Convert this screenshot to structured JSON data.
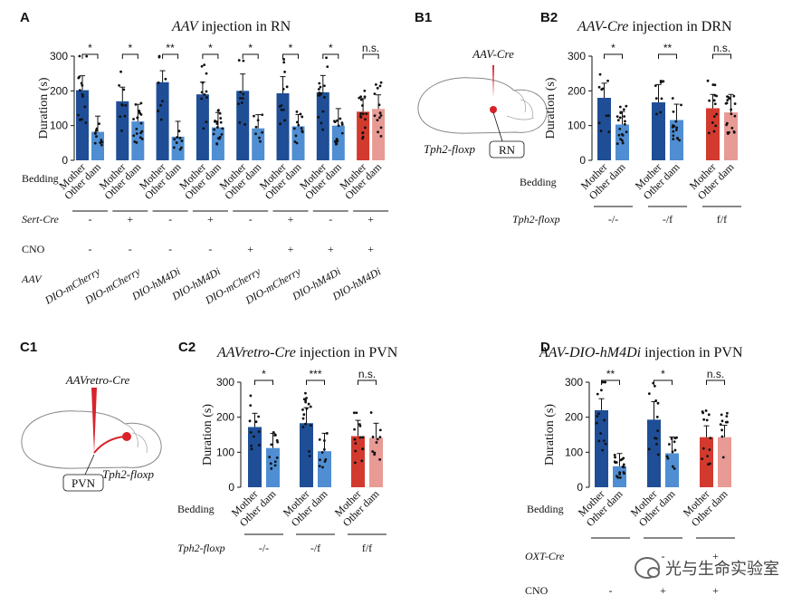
{
  "panel_labels": {
    "A": "A",
    "B1": "B1",
    "B2": "B2",
    "C1": "C1",
    "C2": "C2",
    "D": "D"
  },
  "colors": {
    "mother_blue": "#1f4e96",
    "other_blue": "#4f8ed2",
    "mother_red": "#d33a2e",
    "other_red": "#e89a95",
    "brain_red": "#d8232a"
  },
  "common": {
    "bedding_label": "Bedding",
    "mother": "Mother",
    "other_dam": "Other dam"
  },
  "schematics": {
    "b1": {
      "virus": "AAV-Cre",
      "target": "RN",
      "mouse": "Tph2-floxp"
    },
    "c1": {
      "virus": "AAVretro-Cre",
      "target": "PVN",
      "mouse": "Tph2-floxp"
    }
  },
  "watermark": "光与生命实验室",
  "chart_data": [
    {
      "id": "A",
      "type": "bar",
      "title_italic": "AAV",
      "title_rest": " injection in RN",
      "ylabel": "Duration (s)",
      "ylim": [
        0,
        300
      ],
      "yticks": [
        0,
        100,
        200,
        300
      ],
      "categories": [
        "Mother",
        "Other dam"
      ],
      "groups": [
        {
          "values": [
            202,
            82
          ],
          "significance": "*",
          "colors": [
            "blue"
          ]
        },
        {
          "values": [
            170,
            112
          ],
          "significance": "*",
          "colors": [
            "blue"
          ]
        },
        {
          "values": [
            225,
            68
          ],
          "significance": "**",
          "colors": [
            "blue"
          ]
        },
        {
          "values": [
            190,
            95
          ],
          "significance": "*",
          "colors": [
            "blue"
          ]
        },
        {
          "values": [
            200,
            92
          ],
          "significance": "*",
          "colors": [
            "blue"
          ]
        },
        {
          "values": [
            193,
            98
          ],
          "significance": "*",
          "colors": [
            "blue"
          ]
        },
        {
          "values": [
            196,
            100
          ],
          "significance": "*",
          "colors": [
            "blue"
          ]
        },
        {
          "values": [
            140,
            148
          ],
          "significance": "n.s.",
          "colors": [
            "red"
          ]
        }
      ],
      "conditions": [
        {
          "label": "Sert-Cre",
          "italic": true,
          "values": [
            "-",
            "+",
            "-",
            "+",
            "-",
            "+",
            "-",
            "+"
          ]
        },
        {
          "label": "CNO",
          "italic": false,
          "values": [
            "-",
            "-",
            "-",
            "-",
            "+",
            "+",
            "+",
            "+"
          ]
        },
        {
          "label": "AAV",
          "italic": true,
          "values": [
            "DIO-mCherry",
            "DIO-mCherry",
            "DIO-hM4Di",
            "DIO-hM4Di",
            "DIO-mCherry",
            "DIO-mCherry",
            "DIO-hM4Di",
            "DIO-hM4Di"
          ]
        }
      ]
    },
    {
      "id": "B2",
      "type": "bar",
      "title_italic": "AAV-Cre",
      "title_rest": " injection in DRN",
      "ylabel": "Duration (s)",
      "ylim": [
        0,
        300
      ],
      "yticks": [
        0,
        100,
        200,
        300
      ],
      "categories": [
        "Mother",
        "Other dam"
      ],
      "groups": [
        {
          "values": [
            180,
            103
          ],
          "significance": "*",
          "colors": [
            "blue"
          ]
        },
        {
          "values": [
            167,
            116
          ],
          "significance": "**",
          "colors": [
            "blue"
          ]
        },
        {
          "values": [
            150,
            138
          ],
          "significance": "n.s.",
          "colors": [
            "red"
          ]
        }
      ],
      "conditions": [
        {
          "label": "Tph2-floxp",
          "italic": true,
          "values": [
            "-/-",
            "-/f",
            "f/f"
          ]
        }
      ]
    },
    {
      "id": "C2",
      "type": "bar",
      "title_italic": "AAVretro-Cre",
      "title_rest": " injection in PVN",
      "ylabel": "Duration (s)",
      "ylim": [
        0,
        300
      ],
      "yticks": [
        0,
        100,
        200,
        300
      ],
      "categories": [
        "Mother",
        "Other dam"
      ],
      "groups": [
        {
          "values": [
            172,
            112
          ],
          "significance": "*",
          "colors": [
            "blue"
          ]
        },
        {
          "values": [
            183,
            103
          ],
          "significance": "***",
          "colors": [
            "blue"
          ]
        },
        {
          "values": [
            146,
            141
          ],
          "significance": "n.s.",
          "colors": [
            "red"
          ]
        }
      ],
      "conditions": [
        {
          "label": "Tph2-floxp",
          "italic": true,
          "values": [
            "-/-",
            "-/f",
            "f/f"
          ]
        }
      ]
    },
    {
      "id": "D",
      "type": "bar",
      "title_italic": "AAV-DIO-hM4Di",
      "title_rest": " injection in PVN",
      "ylabel": "Duration (s)",
      "ylim": [
        0,
        300
      ],
      "yticks": [
        0,
        100,
        200,
        300
      ],
      "categories": [
        "Mother",
        "Other dam"
      ],
      "groups": [
        {
          "values": [
            220,
            60
          ],
          "significance": "**",
          "colors": [
            "blue"
          ]
        },
        {
          "values": [
            193,
            97
          ],
          "significance": "*",
          "colors": [
            "blue"
          ]
        },
        {
          "values": [
            143,
            143
          ],
          "significance": "n.s.",
          "colors": [
            "red"
          ]
        }
      ],
      "conditions": [
        {
          "label": "OXT-Cre",
          "italic": true,
          "values": [
            "",
            "-",
            "+"
          ]
        },
        {
          "label": "CNO",
          "italic": false,
          "values": [
            "-",
            "+",
            "+"
          ]
        }
      ]
    }
  ]
}
